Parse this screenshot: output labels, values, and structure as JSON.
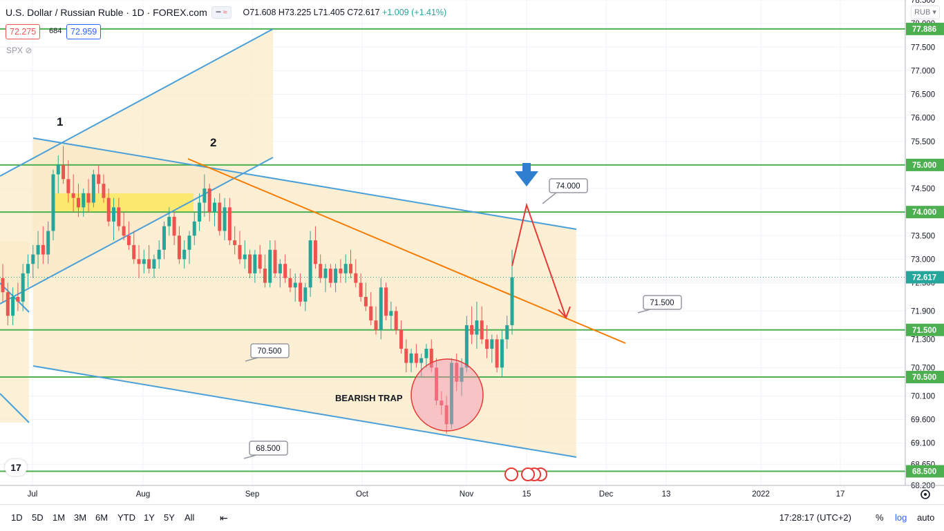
{
  "header": {
    "title": "U.S. Dollar / Russian Ruble · 1D · FOREX.com",
    "ohlc": "O71.608 H73.225 L71.405 C72.617",
    "change": "+1.009 (+1.41%)",
    "bid": "72.275",
    "spread": "684",
    "ask": "72.959",
    "indicator": "SPX",
    "currency": "RUB"
  },
  "colors": {
    "up": "#26a69a",
    "down": "#ef5350",
    "support": "#4caf50",
    "channel": "#4a9fd8",
    "trend": "#f57c00",
    "arrow": "#e53935",
    "zone": "#fbe9c6"
  },
  "chart_data": {
    "type": "candlestick",
    "y_axis": {
      "min": 68.2,
      "max": 78.5,
      "ticks": [
        "78.500",
        "78.000",
        "77.500",
        "77.000",
        "76.500",
        "76.000",
        "75.500",
        "75.000",
        "74.500",
        "74.000",
        "73.500",
        "73.000",
        "72.500",
        "71.900",
        "71.300",
        "70.700",
        "70.100",
        "69.600",
        "69.100",
        "68.650",
        "68.200"
      ]
    },
    "x_axis": {
      "ticks": [
        "Jul",
        "Aug",
        "Sep",
        "Oct",
        "Nov",
        "15",
        "Dec",
        "13",
        "2022",
        "17"
      ]
    },
    "levels": [
      {
        "price": 77.886,
        "label": "77.886"
      },
      {
        "price": 75.0,
        "label": "75.000"
      },
      {
        "price": 74.0,
        "label": "74.000"
      },
      {
        "price": 72.617,
        "label": "72.617",
        "current": true
      },
      {
        "price": 71.5,
        "label": "71.500"
      },
      {
        "price": 70.5,
        "label": "70.500"
      },
      {
        "price": 68.5,
        "label": "68.500"
      }
    ],
    "callouts": [
      "74.000",
      "71.500",
      "70.500",
      "68.500"
    ],
    "annotations": {
      "wave1": "1",
      "wave2": "2",
      "trap": "BEARISH TRAP"
    },
    "candles": [
      [
        72.6,
        72.9,
        72.1,
        72.3
      ],
      [
        72.3,
        72.5,
        71.6,
        71.8
      ],
      [
        71.8,
        72.4,
        71.6,
        72.2
      ],
      [
        72.2,
        72.5,
        71.9,
        72.1
      ],
      [
        72.1,
        72.9,
        71.9,
        72.7
      ],
      [
        72.7,
        73.1,
        72.4,
        72.9
      ],
      [
        72.9,
        73.3,
        72.6,
        73.1
      ],
      [
        73.1,
        73.6,
        72.8,
        73.3
      ],
      [
        73.3,
        73.7,
        72.9,
        73.1
      ],
      [
        73.1,
        73.8,
        72.9,
        73.6
      ],
      [
        73.6,
        74.9,
        73.4,
        74.8
      ],
      [
        74.8,
        75.2,
        74.4,
        75.0
      ],
      [
        75.0,
        75.4,
        74.6,
        74.7
      ],
      [
        74.7,
        75.1,
        74.2,
        74.4
      ],
      [
        74.4,
        74.8,
        74.0,
        74.3
      ],
      [
        74.3,
        74.6,
        73.9,
        74.1
      ],
      [
        74.1,
        74.5,
        73.9,
        74.4
      ],
      [
        74.4,
        74.7,
        74.0,
        74.2
      ],
      [
        74.2,
        74.9,
        74.1,
        74.8
      ],
      [
        74.8,
        75.0,
        74.4,
        74.6
      ],
      [
        74.6,
        74.8,
        74.2,
        74.3
      ],
      [
        74.3,
        74.5,
        73.7,
        73.8
      ],
      [
        73.8,
        74.3,
        73.4,
        74.1
      ],
      [
        74.1,
        74.3,
        73.6,
        73.7
      ],
      [
        73.7,
        74.0,
        73.4,
        73.5
      ],
      [
        73.5,
        73.8,
        73.2,
        73.3
      ],
      [
        73.3,
        73.6,
        72.9,
        73.0
      ],
      [
        73.0,
        73.3,
        72.6,
        72.9
      ],
      [
        72.9,
        73.2,
        72.7,
        73.0
      ],
      [
        73.0,
        73.3,
        72.7,
        72.8
      ],
      [
        72.8,
        73.1,
        72.6,
        73.0
      ],
      [
        73.0,
        73.4,
        72.8,
        73.2
      ],
      [
        73.2,
        73.8,
        73.0,
        73.7
      ],
      [
        73.7,
        74.1,
        73.5,
        73.9
      ],
      [
        73.9,
        74.0,
        73.3,
        73.5
      ],
      [
        73.5,
        73.7,
        72.9,
        73.0
      ],
      [
        73.0,
        73.4,
        72.8,
        73.2
      ],
      [
        73.2,
        73.6,
        72.9,
        73.5
      ],
      [
        73.5,
        74.0,
        73.3,
        73.8
      ],
      [
        73.8,
        74.4,
        73.6,
        74.2
      ],
      [
        74.2,
        74.8,
        73.9,
        74.5
      ],
      [
        74.5,
        74.6,
        73.8,
        74.0
      ],
      [
        74.0,
        74.3,
        73.7,
        74.2
      ],
      [
        74.2,
        74.4,
        73.5,
        73.6
      ],
      [
        73.6,
        74.3,
        73.4,
        74.1
      ],
      [
        74.1,
        74.3,
        73.3,
        73.4
      ],
      [
        73.4,
        73.7,
        73.1,
        73.3
      ],
      [
        73.3,
        73.6,
        72.9,
        73.0
      ],
      [
        73.0,
        73.4,
        72.8,
        73.1
      ],
      [
        73.1,
        73.2,
        72.6,
        72.7
      ],
      [
        72.7,
        73.2,
        72.5,
        73.1
      ],
      [
        73.1,
        73.3,
        72.7,
        72.8
      ],
      [
        72.8,
        73.1,
        72.4,
        72.5
      ],
      [
        72.5,
        73.4,
        72.4,
        73.2
      ],
      [
        73.2,
        73.4,
        72.6,
        72.7
      ],
      [
        72.7,
        73.0,
        72.4,
        72.9
      ],
      [
        72.9,
        73.1,
        72.5,
        72.6
      ],
      [
        72.6,
        72.8,
        72.3,
        72.4
      ],
      [
        72.4,
        72.7,
        72.1,
        72.5
      ],
      [
        72.5,
        72.7,
        72.0,
        72.1
      ],
      [
        72.1,
        72.5,
        71.9,
        72.4
      ],
      [
        72.4,
        73.6,
        72.2,
        73.4
      ],
      [
        73.4,
        73.7,
        72.8,
        72.9
      ],
      [
        72.9,
        73.1,
        72.5,
        72.6
      ],
      [
        72.6,
        72.9,
        72.3,
        72.8
      ],
      [
        72.8,
        72.9,
        72.4,
        72.5
      ],
      [
        72.5,
        72.9,
        72.3,
        72.8
      ],
      [
        72.8,
        73.0,
        72.5,
        72.7
      ],
      [
        72.7,
        73.1,
        72.5,
        72.9
      ],
      [
        72.9,
        73.2,
        72.6,
        72.7
      ],
      [
        72.7,
        73.0,
        72.4,
        72.5
      ],
      [
        72.5,
        72.7,
        72.1,
        72.2
      ],
      [
        72.2,
        72.5,
        71.9,
        72.0
      ],
      [
        72.0,
        72.3,
        71.6,
        71.7
      ],
      [
        71.7,
        72.0,
        71.4,
        71.5
      ],
      [
        71.5,
        72.6,
        71.3,
        72.4
      ],
      [
        72.4,
        72.5,
        71.7,
        71.8
      ],
      [
        71.8,
        72.1,
        71.5,
        71.9
      ],
      [
        71.9,
        72.0,
        71.4,
        71.5
      ],
      [
        71.5,
        71.7,
        71.0,
        71.1
      ],
      [
        71.1,
        71.3,
        70.6,
        70.8
      ],
      [
        70.8,
        71.1,
        70.6,
        71.0
      ],
      [
        71.0,
        71.2,
        70.7,
        70.8
      ],
      [
        70.8,
        71.0,
        70.5,
        70.9
      ],
      [
        70.9,
        71.2,
        70.7,
        71.1
      ],
      [
        71.1,
        71.3,
        70.6,
        70.7
      ],
      [
        70.7,
        70.9,
        69.9,
        70.0
      ],
      [
        70.0,
        70.2,
        69.7,
        69.9
      ],
      [
        69.9,
        70.1,
        69.3,
        69.5
      ],
      [
        69.5,
        70.9,
        69.4,
        70.8
      ],
      [
        70.8,
        71.0,
        70.2,
        70.4
      ],
      [
        70.4,
        70.9,
        70.1,
        70.7
      ],
      [
        70.7,
        71.8,
        70.6,
        71.6
      ],
      [
        71.6,
        72.0,
        71.2,
        71.4
      ],
      [
        71.4,
        72.1,
        71.1,
        71.7
      ],
      [
        71.7,
        72.0,
        71.2,
        71.3
      ],
      [
        71.3,
        71.6,
        70.9,
        71.1
      ],
      [
        71.1,
        71.4,
        70.8,
        71.3
      ],
      [
        71.3,
        71.4,
        70.6,
        70.7
      ],
      [
        70.7,
        71.5,
        70.5,
        71.3
      ],
      [
        71.3,
        71.8,
        71.1,
        71.6
      ],
      [
        71.6,
        73.2,
        71.4,
        72.617
      ]
    ]
  },
  "bottombar": {
    "timeframes": [
      "1D",
      "5D",
      "1M",
      "3M",
      "6M",
      "YTD",
      "1Y",
      "5Y",
      "All"
    ],
    "clock": "17:28:17 (UTC+2)",
    "options": [
      "%",
      "log",
      "auto"
    ]
  }
}
